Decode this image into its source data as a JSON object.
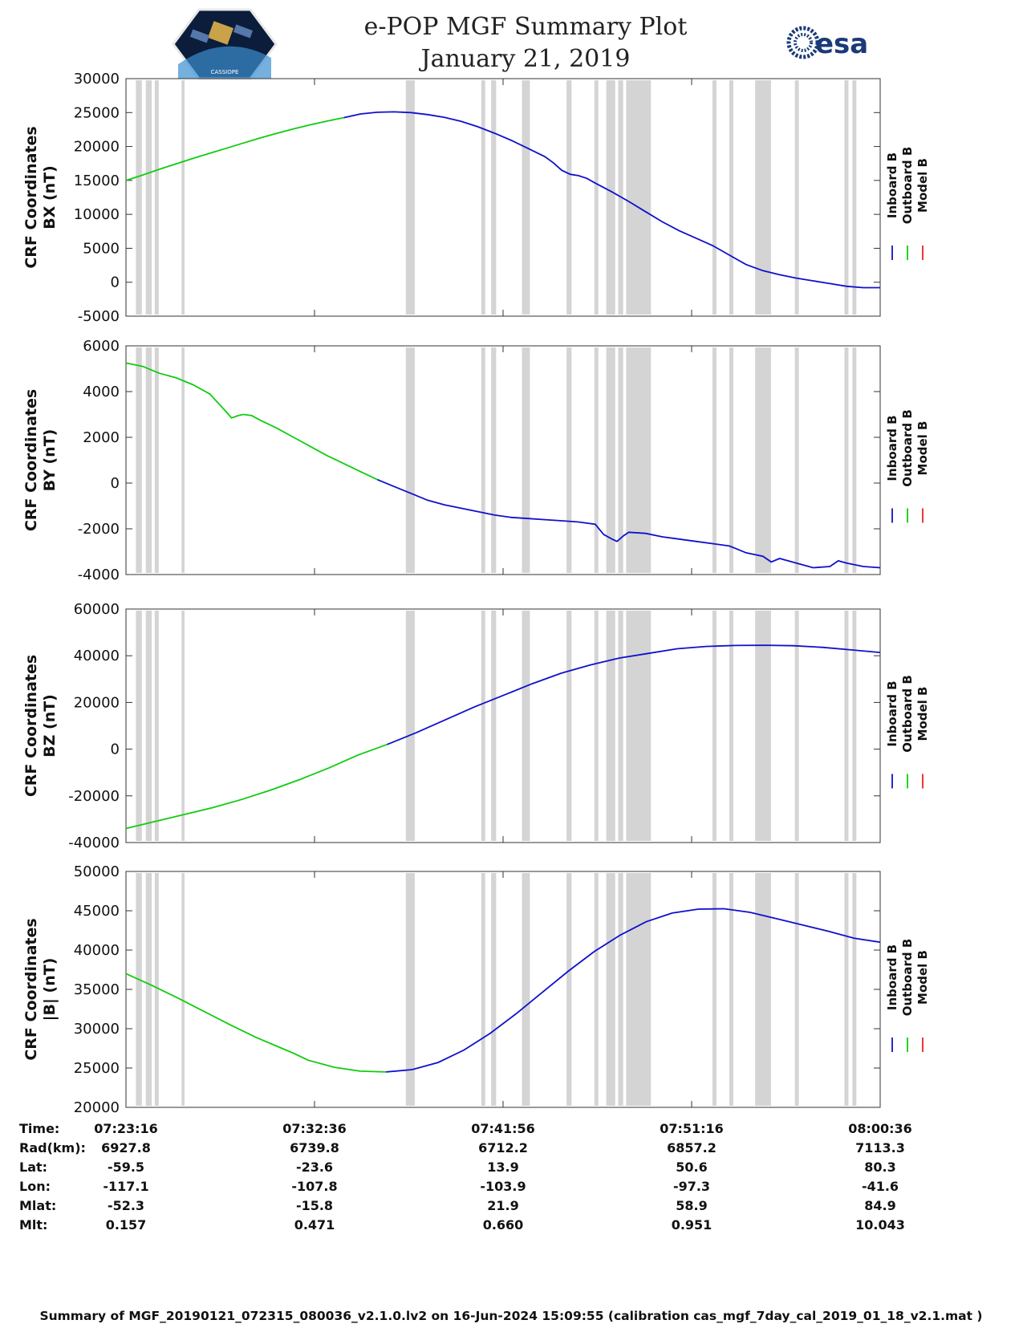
{
  "header": {
    "title_line1": "e-POP MGF Summary Plot",
    "title_line2": "January 21, 2019",
    "left_logo_text": "CASSIOPE",
    "right_logo_text": "esa"
  },
  "legend": {
    "labels": [
      "Inboard B",
      "Outboard B",
      "Model B"
    ],
    "colors": [
      "#1010cc",
      "#10cc10",
      "#ee2020"
    ]
  },
  "chart_data": {
    "type": "line",
    "x_range_minutes": [
      0,
      38
    ],
    "x_ticks_minutes": [
      0,
      9.333,
      18.667,
      28,
      37.333
    ],
    "gap_bands_minutes": [
      [
        0.5,
        0.8
      ],
      [
        1.0,
        1.3
      ],
      [
        1.45,
        1.65
      ],
      [
        2.8,
        2.95
      ],
      [
        14.1,
        14.55
      ],
      [
        17.9,
        18.1
      ],
      [
        18.4,
        18.65
      ],
      [
        19.95,
        20.35
      ],
      [
        22.2,
        22.45
      ],
      [
        23.6,
        23.8
      ],
      [
        24.2,
        24.65
      ],
      [
        24.8,
        25.05
      ],
      [
        25.2,
        26.45
      ],
      [
        29.55,
        29.75
      ],
      [
        30.4,
        30.6
      ],
      [
        31.7,
        32.5
      ],
      [
        33.7,
        33.9
      ],
      [
        36.2,
        36.4
      ],
      [
        36.6,
        36.8
      ]
    ],
    "colors": {
      "inboard": "#1010cc",
      "outboard": "#10cc10",
      "gap": "#d4d4d4"
    },
    "panels": [
      {
        "ylabel_line1": "CRF Coordinates",
        "ylabel_line2": "BX (nT)",
        "ylim": [
          -5000,
          30000
        ],
        "yticks": [
          30000,
          25000,
          20000,
          15000,
          10000,
          5000,
          0,
          -5000
        ],
        "series": [
          {
            "name": "Outboard B",
            "points": [
              [
                0,
                15000
              ],
              [
                1,
                15800
              ],
              [
                2,
                16650
              ],
              [
                3,
                17450
              ],
              [
                4,
                18250
              ],
              [
                5,
                19000
              ],
              [
                6,
                19750
              ],
              [
                7,
                20500
              ],
              [
                8,
                21250
              ],
              [
                9,
                21950
              ],
              [
                10,
                22600
              ],
              [
                11,
                23200
              ],
              [
                12,
                23750
              ],
              [
                13,
                24250
              ]
            ]
          },
          {
            "name": "Inboard B",
            "points": [
              [
                13,
                24250
              ],
              [
                14,
                24800
              ],
              [
                15,
                25050
              ],
              [
                16,
                25100
              ],
              [
                17,
                25000
              ],
              [
                18,
                24700
              ],
              [
                19,
                24300
              ],
              [
                20,
                23700
              ],
              [
                21,
                22900
              ],
              [
                22,
                21950
              ],
              [
                23,
                20900
              ],
              [
                24,
                19700
              ],
              [
                25,
                18500
              ],
              [
                25.5,
                17600
              ],
              [
                26,
                16500
              ],
              [
                26.5,
                15900
              ],
              [
                27,
                15700
              ],
              [
                27.5,
                15300
              ],
              [
                28,
                14600
              ],
              [
                29,
                13300
              ],
              [
                30,
                11900
              ],
              [
                31,
                10400
              ],
              [
                32,
                8900
              ],
              [
                33,
                7600
              ],
              [
                34,
                6500
              ],
              [
                35,
                5400
              ],
              [
                36,
                4000
              ],
              [
                37,
                2600
              ],
              [
                38,
                1700
              ],
              [
                39,
                1100
              ],
              [
                40,
                600
              ],
              [
                41,
                200
              ],
              [
                42,
                -200
              ],
              [
                43,
                -600
              ],
              [
                44,
                -800
              ],
              [
                45,
                -800
              ]
            ]
          }
        ]
      },
      {
        "ylabel_line1": "CRF Coordinates",
        "ylabel_line2": "BY (nT)",
        "ylim": [
          -4000,
          6000
        ],
        "yticks": [
          6000,
          4000,
          2000,
          0,
          -2000,
          -4000
        ],
        "series": [
          {
            "name": "Outboard B",
            "points": [
              [
                0,
                5250
              ],
              [
                1,
                5100
              ],
              [
                1.5,
                4950
              ],
              [
                2,
                4800
              ],
              [
                3,
                4600
              ],
              [
                4,
                4300
              ],
              [
                5,
                3900
              ],
              [
                5.5,
                3500
              ],
              [
                6,
                3100
              ],
              [
                6.3,
                2850
              ],
              [
                6.7,
                2950
              ],
              [
                7,
                3000
              ],
              [
                7.5,
                2950
              ],
              [
                8,
                2750
              ],
              [
                9,
                2400
              ],
              [
                10,
                2000
              ],
              [
                11,
                1600
              ],
              [
                12,
                1200
              ],
              [
                13,
                850
              ],
              [
                14,
                500
              ],
              [
                15,
                150
              ]
            ]
          },
          {
            "name": "Inboard B",
            "points": [
              [
                15,
                150
              ],
              [
                16,
                -150
              ],
              [
                17,
                -450
              ],
              [
                18,
                -750
              ],
              [
                19,
                -950
              ],
              [
                20,
                -1100
              ],
              [
                21,
                -1250
              ],
              [
                22,
                -1400
              ],
              [
                23,
                -1500
              ],
              [
                24,
                -1550
              ],
              [
                25,
                -1600
              ],
              [
                26,
                -1650
              ],
              [
                27,
                -1700
              ],
              [
                28,
                -1800
              ],
              [
                28.5,
                -2250
              ],
              [
                29,
                -2450
              ],
              [
                29.3,
                -2550
              ],
              [
                29.7,
                -2300
              ],
              [
                30,
                -2150
              ],
              [
                31,
                -2200
              ],
              [
                32,
                -2350
              ],
              [
                33,
                -2450
              ],
              [
                34,
                -2550
              ],
              [
                35,
                -2650
              ],
              [
                36,
                -2750
              ],
              [
                36.5,
                -2900
              ],
              [
                37,
                -3050
              ],
              [
                38,
                -3200
              ],
              [
                38.5,
                -3450
              ],
              [
                39,
                -3300
              ],
              [
                40,
                -3500
              ],
              [
                41,
                -3700
              ],
              [
                42,
                -3650
              ],
              [
                42.5,
                -3400
              ],
              [
                43,
                -3500
              ],
              [
                44,
                -3650
              ],
              [
                45,
                -3700
              ]
            ]
          }
        ]
      },
      {
        "ylabel_line1": "CRF Coordinates",
        "ylabel_line2": "BZ (nT)",
        "ylim": [
          -40000,
          60000
        ],
        "yticks": [
          60000,
          40000,
          20000,
          0,
          -20000,
          -40000
        ],
        "series": [
          {
            "name": "Outboard B",
            "points": [
              [
                0,
                -34000
              ],
              [
                2,
                -31000
              ],
              [
                4,
                -28000
              ],
              [
                6,
                -25000
              ],
              [
                8,
                -21500
              ],
              [
                10,
                -17500
              ],
              [
                12,
                -13000
              ],
              [
                14,
                -8000
              ],
              [
                16,
                -2500
              ],
              [
                18,
                2000
              ]
            ]
          },
          {
            "name": "Inboard B",
            "points": [
              [
                18,
                2000
              ],
              [
                20,
                7000
              ],
              [
                22,
                12500
              ],
              [
                24,
                18000
              ],
              [
                26,
                23000
              ],
              [
                28,
                28000
              ],
              [
                30,
                32500
              ],
              [
                32,
                36000
              ],
              [
                34,
                39000
              ],
              [
                36,
                41000
              ],
              [
                38,
                43000
              ],
              [
                40,
                44000
              ],
              [
                42,
                44400
              ],
              [
                44,
                44500
              ],
              [
                46,
                44300
              ],
              [
                48,
                43600
              ],
              [
                50,
                42500
              ],
              [
                52,
                41400
              ]
            ]
          }
        ]
      },
      {
        "ylabel_line1": "CRF Coordinates",
        "ylabel_line2": "|B| (nT)",
        "ylim": [
          20000,
          50000
        ],
        "yticks": [
          50000,
          45000,
          40000,
          35000,
          30000,
          25000,
          20000
        ],
        "series": [
          {
            "name": "Outboard B",
            "points": [
              [
                0,
                37000
              ],
              [
                2,
                35500
              ],
              [
                4,
                33900
              ],
              [
                6,
                32200
              ],
              [
                8,
                30500
              ],
              [
                10,
                28900
              ],
              [
                12,
                27500
              ],
              [
                13,
                26800
              ],
              [
                14,
                26000
              ],
              [
                16,
                25100
              ],
              [
                18,
                24600
              ],
              [
                20,
                24500
              ]
            ]
          },
          {
            "name": "Inboard B",
            "points": [
              [
                20,
                24500
              ],
              [
                22,
                24800
              ],
              [
                24,
                25700
              ],
              [
                26,
                27300
              ],
              [
                28,
                29400
              ],
              [
                30,
                31900
              ],
              [
                32,
                34600
              ],
              [
                34,
                37300
              ],
              [
                36,
                39800
              ],
              [
                38,
                41900
              ],
              [
                40,
                43600
              ],
              [
                42,
                44700
              ],
              [
                44,
                45200
              ],
              [
                46,
                45250
              ],
              [
                48,
                44800
              ],
              [
                50,
                44000
              ],
              [
                52,
                43200
              ],
              [
                54,
                42400
              ],
              [
                56,
                41500
              ],
              [
                58,
                41000
              ]
            ]
          }
        ]
      }
    ]
  },
  "ephemeris": {
    "row_labels": [
      "Time:",
      "Rad(km):",
      "Lat:",
      "Lon:",
      "Mlat:",
      "Mlt:"
    ],
    "columns": [
      [
        "07:23:16",
        "6927.8",
        "-59.5",
        "-117.1",
        "-52.3",
        "0.157"
      ],
      [
        "07:32:36",
        "6739.8",
        "-23.6",
        "-107.8",
        "-15.8",
        "0.471"
      ],
      [
        "07:41:56",
        "6712.2",
        "13.9",
        "-103.9",
        "21.9",
        "0.660"
      ],
      [
        "07:51:16",
        "6857.2",
        "50.6",
        "-97.3",
        "58.9",
        "0.951"
      ],
      [
        "08:00:36",
        "7113.3",
        "80.3",
        "-41.6",
        "84.9",
        "10.043"
      ]
    ]
  },
  "footer": {
    "text": "Summary of MGF_20190121_072315_080036_v2.1.0.lv2 on 16-Jun-2024 15:09:55 (calibration cas_mgf_7day_cal_2019_01_18_v2.1.mat )"
  }
}
